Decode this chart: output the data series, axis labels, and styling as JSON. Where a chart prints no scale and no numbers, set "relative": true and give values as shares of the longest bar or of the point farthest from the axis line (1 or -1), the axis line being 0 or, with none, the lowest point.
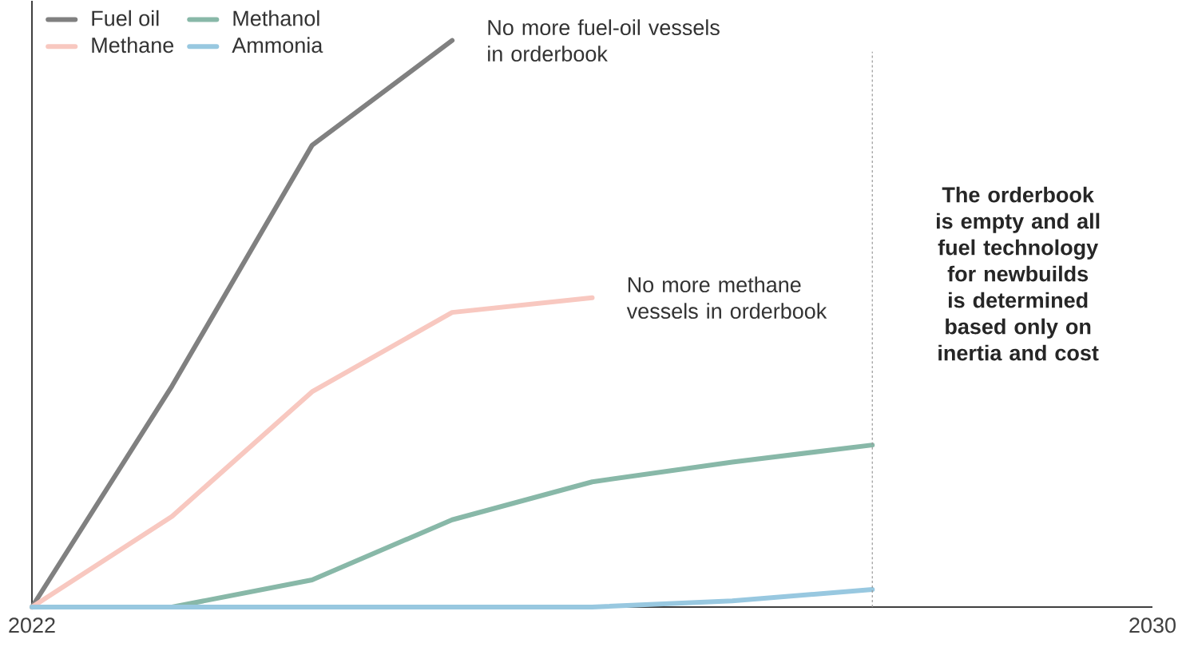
{
  "chart_data": {
    "type": "line",
    "relative": true,
    "x": [
      2022,
      2023,
      2024,
      2025,
      2026,
      2027,
      2028
    ],
    "xlim": [
      2022,
      2030
    ],
    "xticks": [
      2022,
      2030
    ],
    "series": [
      {
        "name": "Fuel oil",
        "color": "#808080",
        "values": [
          0,
          0.39,
          0.815,
          1.0,
          null,
          null,
          null
        ]
      },
      {
        "name": "Methane",
        "color": "#f8c8c0",
        "values": [
          0,
          0.16,
          0.38,
          0.52,
          0.546,
          null,
          null
        ]
      },
      {
        "name": "Methanol",
        "color": "#88b8a8",
        "values": [
          0,
          0,
          0.048,
          0.154,
          0.221,
          0.256,
          0.286
        ]
      },
      {
        "name": "Ammonia",
        "color": "#98c8e0",
        "values": [
          0,
          0,
          0,
          0,
          0,
          0.011,
          0.031
        ]
      }
    ],
    "ref_lines": [
      {
        "axis": "x",
        "value": 2028,
        "color": "#999999",
        "line_style": "dashed"
      }
    ],
    "annotations": [
      {
        "text": "No more fuel-oil vessels in orderbook",
        "x": 2025,
        "y": 1.0
      },
      {
        "text": "No more methane vessels in orderbook",
        "x": 2026,
        "y": 0.546
      },
      "The orderbook is empty and all fuel technology for newbuilds is determined based only on inertia and cost"
    ],
    "legend": "top left",
    "grid": false,
    "marker": "none",
    "line_style": "solid"
  }
}
